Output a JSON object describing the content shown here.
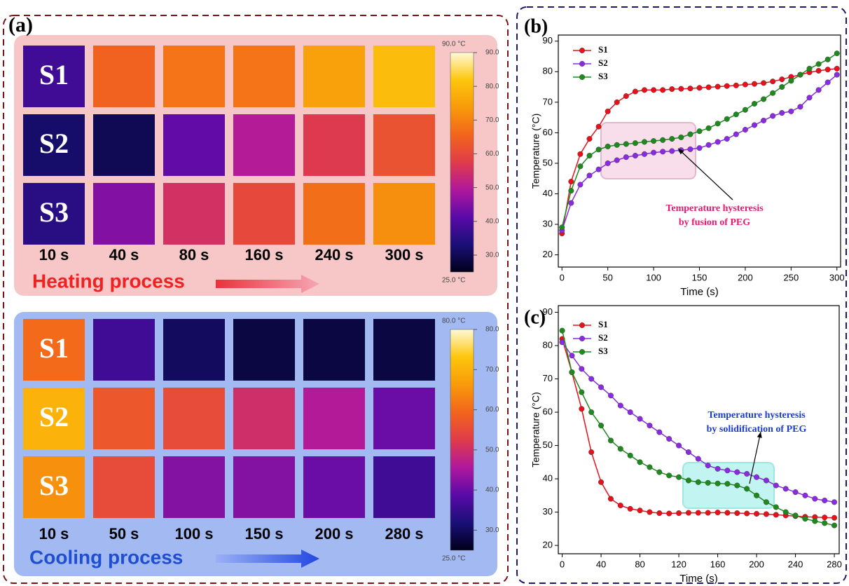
{
  "panel_a": {
    "label": "(a)",
    "colormap": [
      "#00001a",
      "#1a0f78",
      "#5a0aa8",
      "#b0189c",
      "#e03c4a",
      "#f2651c",
      "#f89a0a",
      "#fdc60c",
      "#fff9d8"
    ],
    "heating": {
      "title": "Heating process",
      "samples": [
        "S1",
        "S2",
        "S3"
      ],
      "times": [
        "10 s",
        "40 s",
        "80 s",
        "160 s",
        "240 s",
        "300 s"
      ],
      "cells": [
        [
          38,
          65,
          68,
          68,
          75,
          80
        ],
        [
          32,
          30,
          42,
          50,
          57,
          62
        ],
        [
          35,
          45,
          55,
          60,
          67,
          72
        ]
      ],
      "range": [
        25,
        90
      ],
      "range_labels": [
        "25.0 °C",
        "90.0 °C"
      ],
      "ticks": [
        {
          "value": 30,
          "label": "30.0"
        },
        {
          "value": 40,
          "label": "40.0"
        },
        {
          "value": 50,
          "label": "50.0"
        },
        {
          "value": 60,
          "label": "60.0"
        },
        {
          "value": 70,
          "label": "70.0"
        },
        {
          "value": 80,
          "label": "80.0"
        },
        {
          "value": 90,
          "label": "90.0"
        }
      ]
    },
    "cooling": {
      "title": "Cooling process",
      "samples": [
        "S1",
        "S2",
        "S3"
      ],
      "times": [
        "10 s",
        "50 s",
        "100 s",
        "150 s",
        "200 s",
        "280 s"
      ],
      "cells": [
        [
          60,
          36,
          30,
          28,
          28,
          28
        ],
        [
          70,
          57,
          55,
          50,
          46,
          40
        ],
        [
          65,
          55,
          42,
          42,
          40,
          36
        ]
      ],
      "range": [
        25,
        80
      ],
      "range_labels": [
        "25.0 °C",
        "80.0 °C"
      ],
      "ticks": [
        {
          "value": 30,
          "label": "30.0"
        },
        {
          "value": 40,
          "label": "40.0"
        },
        {
          "value": 50,
          "label": "50.0"
        },
        {
          "value": 60,
          "label": "60.0"
        },
        {
          "value": 70,
          "label": "70.0"
        },
        {
          "value": 80,
          "label": "80.0"
        }
      ]
    }
  },
  "chart_data": [
    {
      "type": "line",
      "label": "(b)",
      "xlabel": "Time (s)",
      "ylabel": "Temperature (°C)",
      "x": [
        0,
        10,
        20,
        30,
        40,
        50,
        60,
        70,
        80,
        90,
        100,
        110,
        120,
        130,
        140,
        150,
        160,
        170,
        180,
        190,
        200,
        210,
        220,
        230,
        240,
        250,
        260,
        270,
        280,
        290,
        300
      ],
      "xlim": [
        -4,
        304
      ],
      "xticks": [
        0,
        50,
        100,
        150,
        200,
        250,
        300
      ],
      "ylim": [
        16,
        92
      ],
      "yticks": [
        20,
        30,
        40,
        50,
        60,
        70,
        80,
        90
      ],
      "legend": "upper-left",
      "annotation": [
        "Temperature hysteresis",
        "by fusion of  PEG"
      ],
      "annotation_color": "#e8196e",
      "series": [
        {
          "name": "S1",
          "color": "#e8101a",
          "values": [
            27,
            44,
            53,
            58,
            62,
            67,
            70,
            72,
            73.5,
            74,
            74,
            74,
            74.3,
            74.4,
            74.5,
            74.7,
            74.9,
            75.1,
            75.3,
            75.5,
            75.8,
            76,
            76.3,
            76.8,
            77.5,
            78.3,
            79,
            79.8,
            80.3,
            80.7,
            81
          ]
        },
        {
          "name": "S2",
          "color": "#8a2be2",
          "values": [
            28,
            37,
            43,
            46,
            48,
            50,
            51,
            52,
            52.5,
            53,
            53.5,
            53.8,
            54,
            54.3,
            54.6,
            55,
            56,
            57,
            58,
            59.5,
            61,
            62.5,
            64,
            65.5,
            66.5,
            67,
            68.5,
            71.5,
            74,
            76.5,
            79
          ]
        },
        {
          "name": "S3",
          "color": "#1e8a1e",
          "values": [
            29,
            41,
            49,
            52.5,
            54.5,
            55.5,
            56,
            56.3,
            56.6,
            57,
            57.3,
            57.6,
            58,
            58.5,
            59.5,
            60.5,
            61.5,
            63,
            64.5,
            66,
            67.5,
            69.5,
            71,
            73,
            75,
            77,
            79,
            81,
            82.5,
            84,
            86
          ]
        }
      ]
    },
    {
      "type": "line",
      "label": "(c)",
      "xlabel": "Time (s)",
      "ylabel": "Temperature (°C)",
      "x": [
        0,
        10,
        20,
        30,
        40,
        50,
        60,
        70,
        80,
        90,
        100,
        110,
        120,
        130,
        140,
        150,
        160,
        170,
        180,
        190,
        200,
        210,
        220,
        230,
        240,
        250,
        260,
        270,
        280
      ],
      "xlim": [
        -4,
        285
      ],
      "xticks": [
        0,
        40,
        80,
        120,
        160,
        200,
        240,
        280
      ],
      "ylim": [
        17.5,
        92
      ],
      "yticks": [
        20,
        30,
        40,
        50,
        60,
        70,
        80,
        90
      ],
      "legend": "upper-left",
      "annotation": [
        "Temperature hysteresis",
        "by solidification of PEG"
      ],
      "annotation_color": "#1a3ccf",
      "series": [
        {
          "name": "S1",
          "color": "#e8101a",
          "values": [
            82,
            72,
            61,
            48,
            39,
            34,
            32,
            31,
            30.5,
            30,
            29.7,
            29.6,
            29.7,
            29.8,
            29.8,
            29.8,
            29.9,
            29.8,
            29.7,
            29.6,
            29.5,
            29.4,
            29.2,
            29,
            28.8,
            28.6,
            28.5,
            28.4,
            28.3
          ]
        },
        {
          "name": "S2",
          "color": "#8a2be2",
          "values": [
            81,
            77,
            73,
            70,
            67.5,
            65,
            62,
            60,
            58,
            56,
            54,
            52,
            50,
            48,
            46,
            44,
            43,
            42.5,
            42,
            41.5,
            40.5,
            39.5,
            38,
            37,
            36,
            35,
            34,
            33.5,
            33
          ]
        },
        {
          "name": "S3",
          "color": "#1e8a1e",
          "values": [
            84.5,
            72,
            66,
            60,
            56,
            51.5,
            49,
            47,
            45,
            43.5,
            42,
            41,
            40.5,
            39.5,
            39,
            38.8,
            38.6,
            38.5,
            38,
            37,
            35,
            33,
            31.5,
            30,
            29,
            28,
            27.3,
            26.7,
            26
          ]
        }
      ]
    }
  ]
}
